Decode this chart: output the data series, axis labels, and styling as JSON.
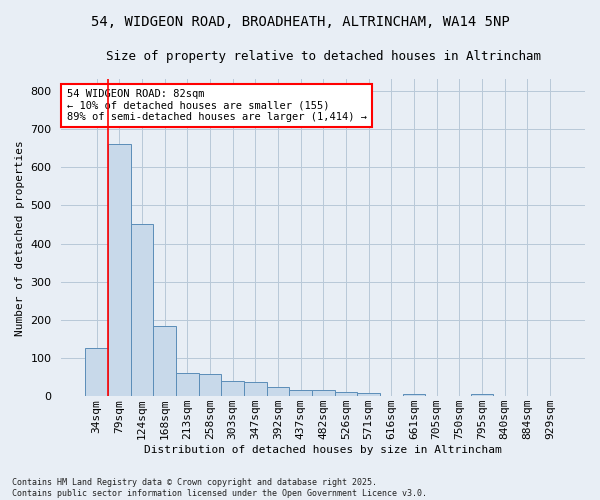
{
  "title_line1": "54, WIDGEON ROAD, BROADHEATH, ALTRINCHAM, WA14 5NP",
  "title_line2": "Size of property relative to detached houses in Altrincham",
  "xlabel": "Distribution of detached houses by size in Altrincham",
  "ylabel": "Number of detached properties",
  "categories": [
    "34sqm",
    "79sqm",
    "124sqm",
    "168sqm",
    "213sqm",
    "258sqm",
    "303sqm",
    "347sqm",
    "392sqm",
    "437sqm",
    "482sqm",
    "526sqm",
    "571sqm",
    "616sqm",
    "661sqm",
    "705sqm",
    "750sqm",
    "795sqm",
    "840sqm",
    "884sqm",
    "929sqm"
  ],
  "values": [
    125,
    660,
    450,
    185,
    62,
    57,
    40,
    38,
    25,
    17,
    15,
    10,
    7,
    0,
    5,
    0,
    0,
    5,
    0,
    0,
    0
  ],
  "bar_color": "#c8d9ea",
  "bar_edge_color": "#5b8db8",
  "grid_color": "#b8c8d8",
  "bg_color": "#e8eef5",
  "vline_x": 0.5,
  "vline_color": "red",
  "annotation_text": "54 WIDGEON ROAD: 82sqm\n← 10% of detached houses are smaller (155)\n89% of semi-detached houses are larger (1,414) →",
  "annotation_box_color": "white",
  "annotation_box_edge": "red",
  "footnote": "Contains HM Land Registry data © Crown copyright and database right 2025.\nContains public sector information licensed under the Open Government Licence v3.0.",
  "ylim": [
    0,
    830
  ],
  "yticks": [
    0,
    100,
    200,
    300,
    400,
    500,
    600,
    700,
    800
  ],
  "title_fontsize": 10,
  "subtitle_fontsize": 9,
  "axis_label_fontsize": 8,
  "tick_fontsize": 8,
  "annotation_fontsize": 7.5,
  "footnote_fontsize": 6
}
